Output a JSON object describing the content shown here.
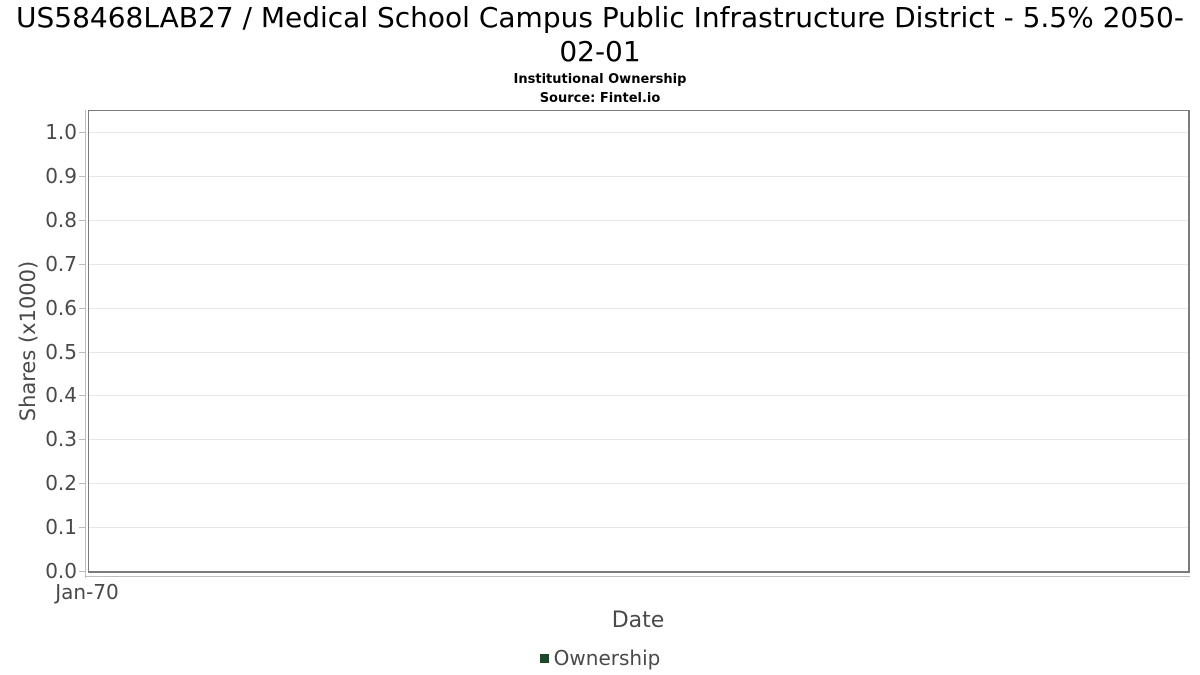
{
  "chart_data": {
    "type": "line",
    "title": "US58468LAB27 / Medical School Campus Public Infrastructure District - 5.5% 2050-02-01",
    "subtitle": "Institutional Ownership",
    "source": "Source: Fintel.io",
    "xlabel": "Date",
    "ylabel": "Shares (x1000)",
    "x_ticks": [
      "Jan-70"
    ],
    "y_ticks": [
      "0.0",
      "0.1",
      "0.2",
      "0.3",
      "0.4",
      "0.5",
      "0.6",
      "0.7",
      "0.8",
      "0.9",
      "1.0"
    ],
    "ylim": [
      0,
      1.048
    ],
    "grid": true,
    "legend_position": "bottom",
    "series": [
      {
        "name": "Ownership",
        "color": "#1d4a26",
        "values": []
      }
    ],
    "colors": {
      "series_green": "#1d4a26",
      "grid_line": "#e7e7e7",
      "plot_border": "#7b7b7b",
      "axis_line": "#bdbdbd",
      "tick_text": "#4a4a4a",
      "title_text": "#000000"
    }
  }
}
